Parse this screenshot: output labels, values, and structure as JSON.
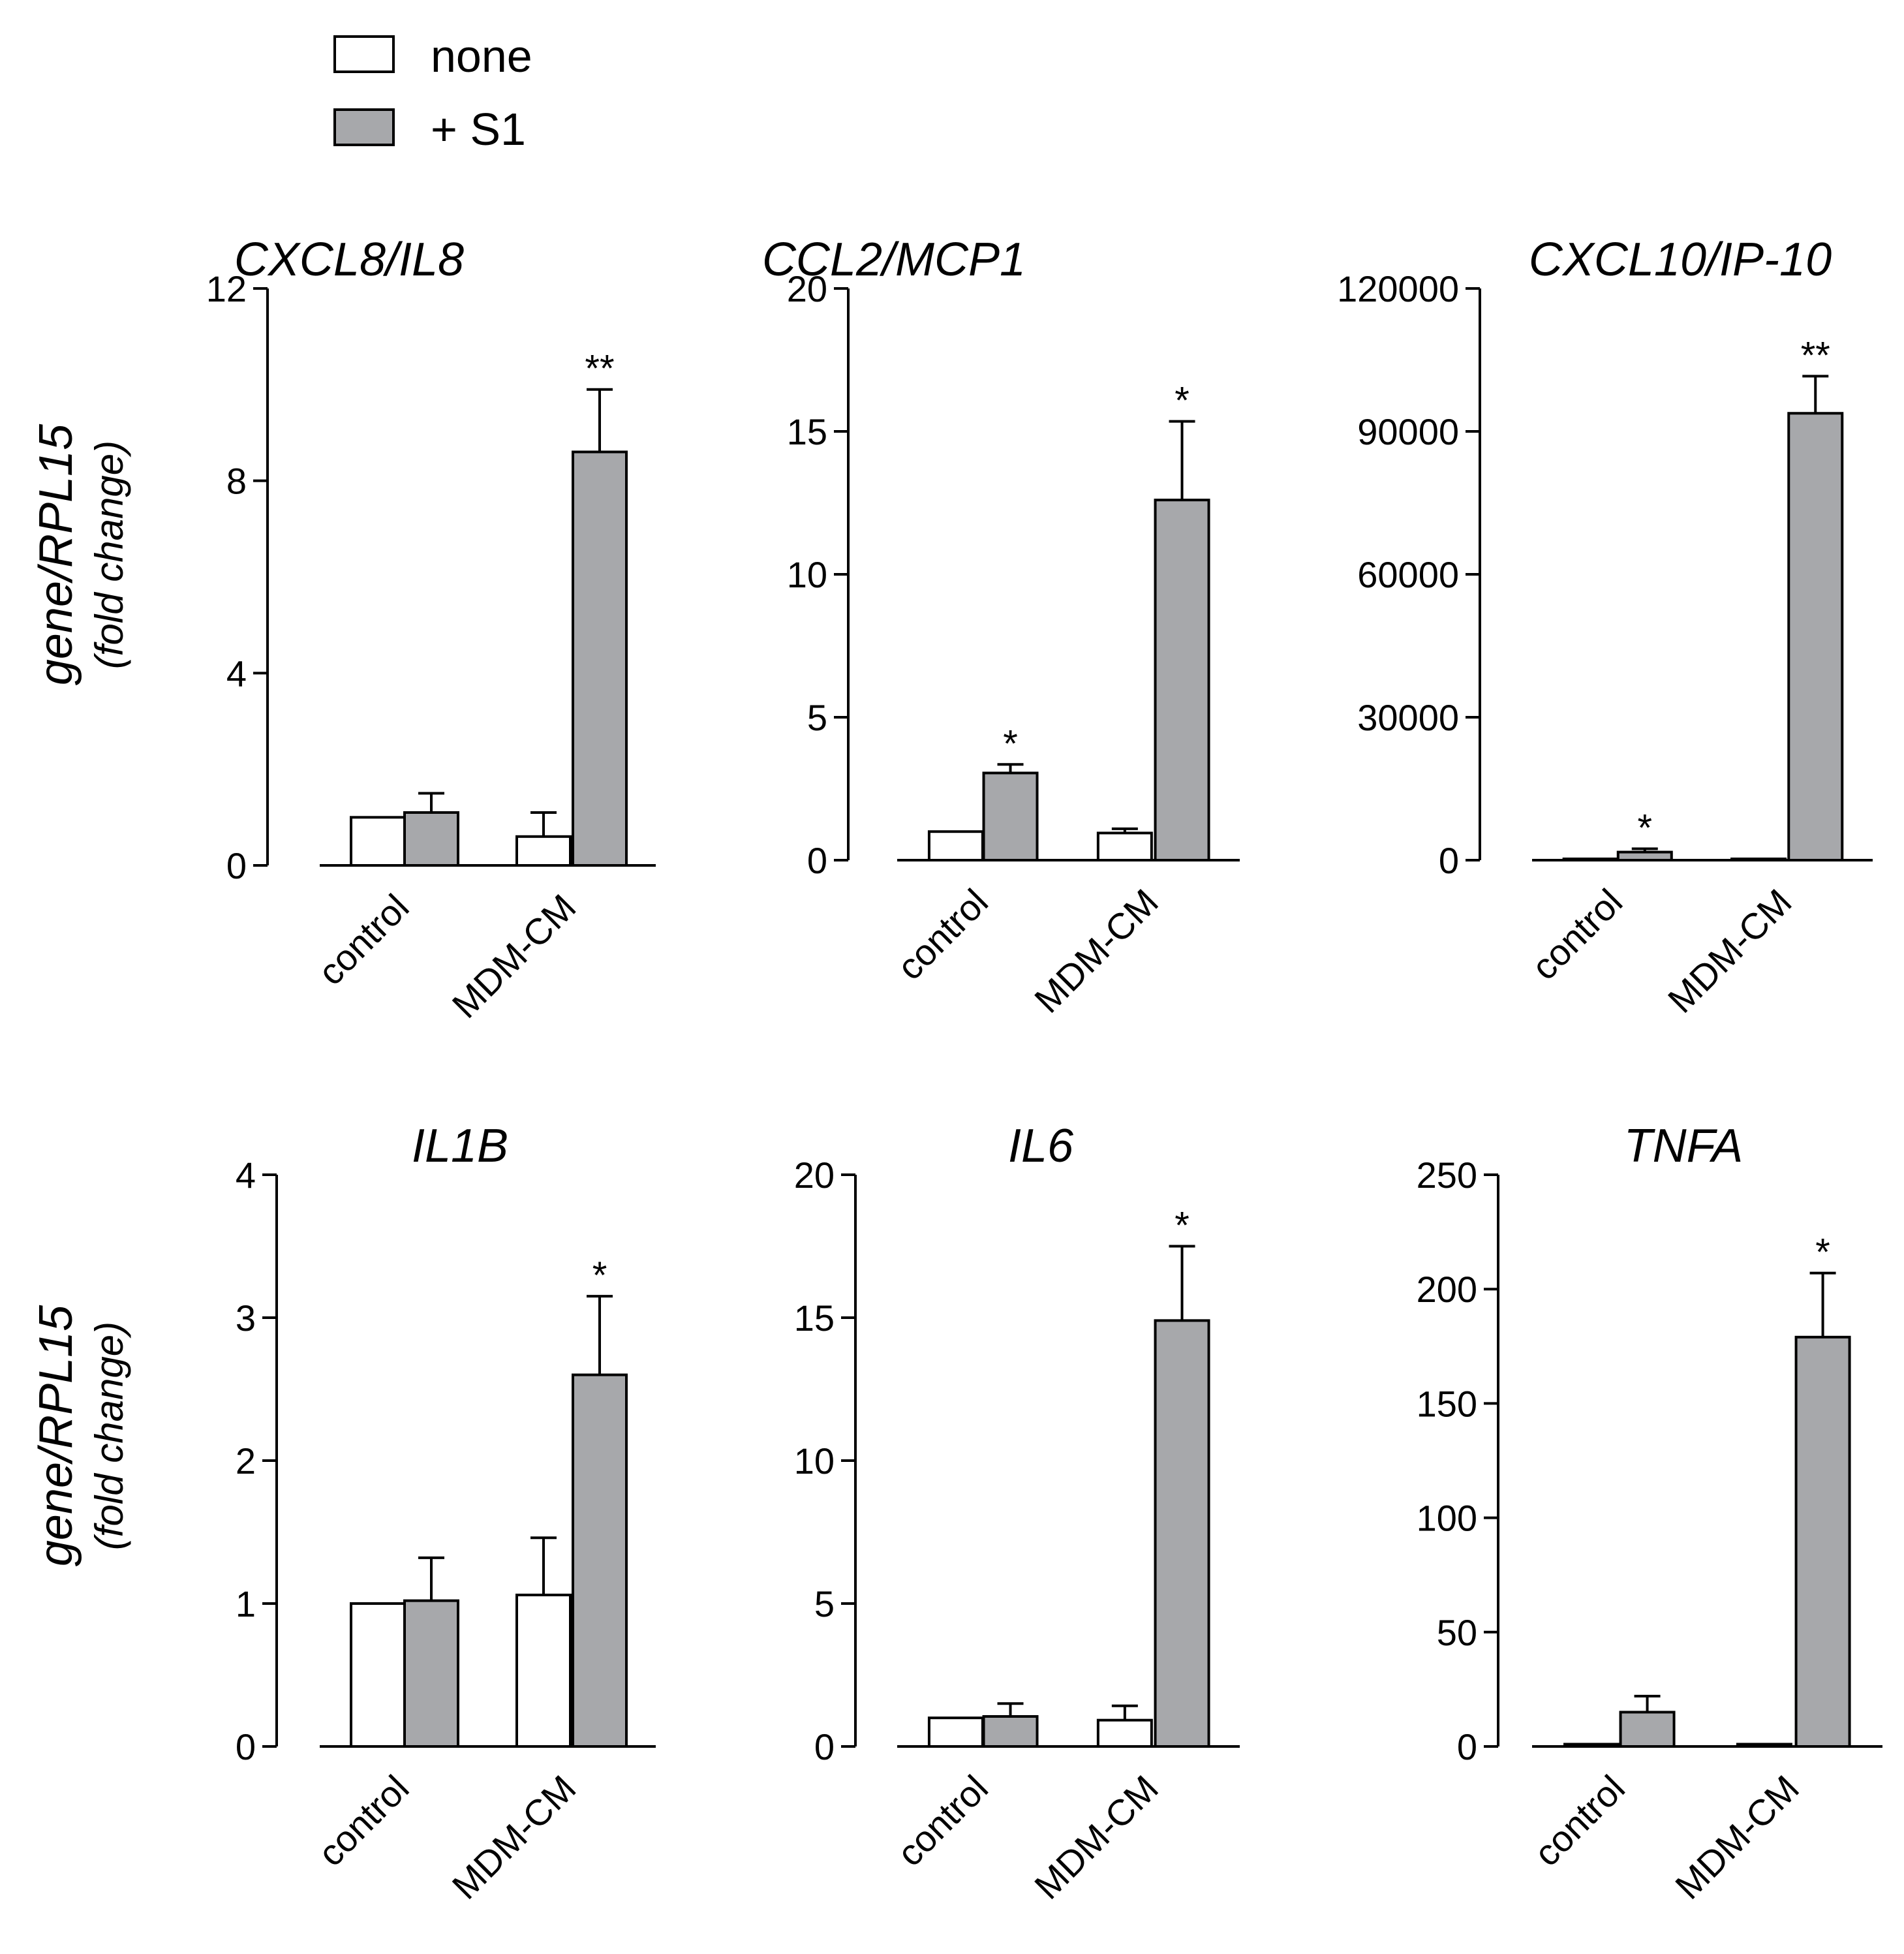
{
  "legend": [
    {
      "label": "none",
      "color": "#ffffff"
    },
    {
      "label": "+ S1",
      "color": "#a7a8ab"
    }
  ],
  "y_axis_label": {
    "prefix": "gene/",
    "gene": "RPL15",
    "sub": "(fold change)"
  },
  "colors": {
    "none": "#ffffff",
    "s1": "#a7a8ab",
    "stroke": "#000000"
  },
  "chart_data": [
    {
      "type": "bar",
      "title": "CXCL8/IL8",
      "categories": [
        "control",
        "MDM-CM"
      ],
      "ylim": [
        0,
        12
      ],
      "yticks": [
        "0",
        "4",
        "8",
        "12"
      ],
      "series": [
        {
          "name": "none",
          "values": [
            1.0,
            0.6
          ],
          "errors": [
            0.0,
            0.5
          ],
          "sig": [
            "",
            ""
          ]
        },
        {
          "name": "+ S1",
          "values": [
            1.1,
            8.6
          ],
          "errors": [
            0.4,
            1.3
          ],
          "sig": [
            "",
            "**"
          ]
        }
      ]
    },
    {
      "type": "bar",
      "title": "CCL2/MCP1",
      "categories": [
        "control",
        "MDM-CM"
      ],
      "ylim": [
        0,
        20
      ],
      "yticks": [
        "0",
        "5",
        "10",
        "15",
        "20"
      ],
      "series": [
        {
          "name": "none",
          "values": [
            1.0,
            0.95
          ],
          "errors": [
            0.0,
            0.15
          ],
          "sig": [
            "",
            ""
          ]
        },
        {
          "name": "+ S1",
          "values": [
            3.05,
            12.6
          ],
          "errors": [
            0.3,
            2.75
          ],
          "sig": [
            "*",
            "*"
          ]
        }
      ]
    },
    {
      "type": "bar",
      "title": "CXCL10/IP-10",
      "categories": [
        "control",
        "MDM-CM"
      ],
      "ylim": [
        0,
        120000
      ],
      "yticks": [
        "0",
        "30000",
        "60000",
        "90000",
        "120000"
      ],
      "series": [
        {
          "name": "none",
          "values": [
            1,
            1
          ],
          "errors": [
            0,
            0
          ],
          "sig": [
            "",
            ""
          ]
        },
        {
          "name": "+ S1",
          "values": [
            1700,
            93800
          ],
          "errors": [
            700,
            7800
          ],
          "sig": [
            "*",
            "**"
          ]
        }
      ]
    },
    {
      "type": "bar",
      "title": "IL1B",
      "categories": [
        "control",
        "MDM-CM"
      ],
      "ylim": [
        0,
        4
      ],
      "yticks": [
        "0",
        "1",
        "2",
        "3",
        "4"
      ],
      "series": [
        {
          "name": "none",
          "values": [
            1.0,
            1.06
          ],
          "errors": [
            0.0,
            0.4
          ],
          "sig": [
            "",
            ""
          ]
        },
        {
          "name": "+ S1",
          "values": [
            1.02,
            2.6
          ],
          "errors": [
            0.3,
            0.55
          ],
          "sig": [
            "",
            "*"
          ]
        }
      ]
    },
    {
      "type": "bar",
      "title": "IL6",
      "categories": [
        "control",
        "MDM-CM"
      ],
      "ylim": [
        0,
        20
      ],
      "yticks": [
        "0",
        "5",
        "10",
        "15",
        "20"
      ],
      "series": [
        {
          "name": "none",
          "values": [
            1.0,
            0.92
          ],
          "errors": [
            0.0,
            0.5
          ],
          "sig": [
            "",
            ""
          ]
        },
        {
          "name": "+ S1",
          "values": [
            1.05,
            14.9
          ],
          "errors": [
            0.45,
            2.6
          ],
          "sig": [
            "",
            "*"
          ]
        }
      ]
    },
    {
      "type": "bar",
      "title": "TNFA",
      "categories": [
        "control",
        "MDM-CM"
      ],
      "ylim": [
        0,
        250
      ],
      "yticks": [
        "0",
        "50",
        "100",
        "150",
        "200",
        "250"
      ],
      "series": [
        {
          "name": "none",
          "values": [
            1,
            1
          ],
          "errors": [
            0,
            0
          ],
          "sig": [
            "",
            ""
          ]
        },
        {
          "name": "+ S1",
          "values": [
            15,
            179
          ],
          "errors": [
            7,
            28
          ],
          "sig": [
            "",
            "*"
          ]
        }
      ]
    }
  ]
}
